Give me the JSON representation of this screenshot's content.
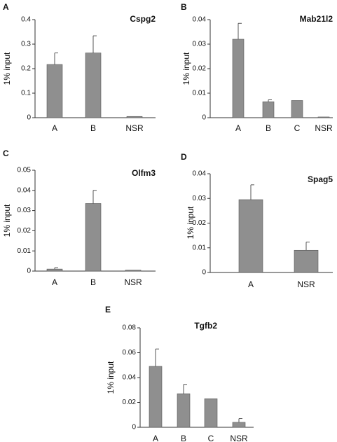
{
  "chart_data": [
    {
      "panel": "A",
      "type": "bar",
      "title": "Cspg2",
      "xlabel": "",
      "ylabel": "1% input",
      "ylim": [
        0,
        0.4
      ],
      "yticks": [
        "0",
        "0.1",
        "0.2",
        "0.3",
        "0.4"
      ],
      "categories": [
        "A",
        "B",
        "NSR"
      ],
      "values": [
        0.217,
        0.264,
        0.005
      ],
      "errors": [
        0.047,
        0.07,
        0.0
      ],
      "bar_color": "#8f8f8f"
    },
    {
      "panel": "B",
      "type": "bar",
      "title": "Mab21l2",
      "xlabel": "",
      "ylabel": "1% input",
      "ylim": [
        0,
        0.04
      ],
      "yticks": [
        "0",
        "0.01",
        "0.02",
        "0.03",
        "0.04"
      ],
      "categories": [
        "A",
        "B",
        "C",
        "NSR"
      ],
      "values": [
        0.032,
        0.0065,
        0.007,
        0.0003
      ],
      "errors": [
        0.0065,
        0.0008,
        0.0,
        0.0
      ],
      "bar_color": "#8f8f8f"
    },
    {
      "panel": "C",
      "type": "bar",
      "title": "Olfm3",
      "xlabel": "",
      "ylabel": "1% input",
      "ylim": [
        0,
        0.05
      ],
      "yticks": [
        "0",
        "0.01",
        "0.02",
        "0.03",
        "0.04",
        "0.05"
      ],
      "categories": [
        "A",
        "B",
        "NSR"
      ],
      "values": [
        0.001,
        0.0335,
        0.0005
      ],
      "errors": [
        0.0007,
        0.0065,
        0.0
      ],
      "bar_color": "#8f8f8f"
    },
    {
      "panel": "D",
      "type": "bar",
      "title": "Spag5",
      "xlabel": "",
      "ylabel": "1% input",
      "ylim": [
        0,
        0.04
      ],
      "yticks": [
        "0",
        "0.01",
        "0.02",
        "0.03",
        "0.04"
      ],
      "categories": [
        "A",
        "NSR"
      ],
      "values": [
        0.0295,
        0.009
      ],
      "errors": [
        0.006,
        0.0033
      ],
      "bar_color": "#8f8f8f"
    },
    {
      "panel": "E",
      "type": "bar",
      "title": "Tgfb2",
      "xlabel": "",
      "ylabel": "1% input",
      "ylim": [
        0,
        0.08
      ],
      "yticks": [
        "0",
        "0.02",
        "0.04",
        "0.06",
        "0.08"
      ],
      "categories": [
        "A",
        "B",
        "C",
        "NSR"
      ],
      "values": [
        0.049,
        0.027,
        0.023,
        0.004
      ],
      "errors": [
        0.014,
        0.0075,
        0.0,
        0.003
      ],
      "bar_color": "#8f8f8f"
    }
  ]
}
